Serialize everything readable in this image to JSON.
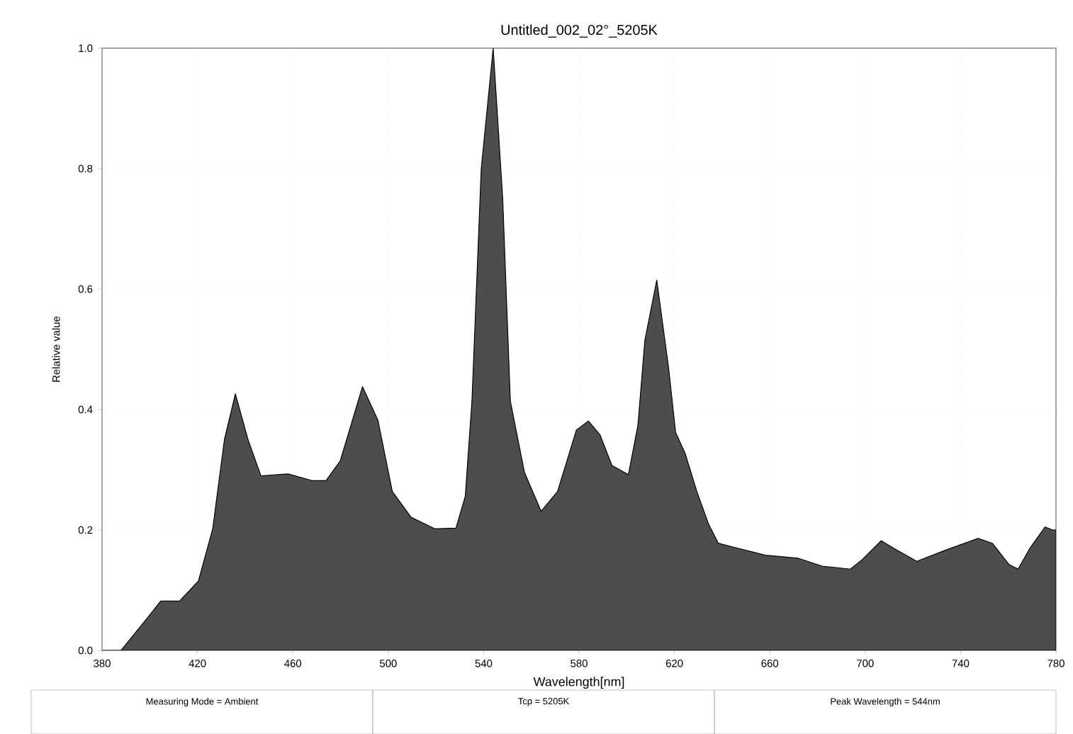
{
  "chart_data": {
    "type": "area",
    "title": "Untitled_002_02°_5205K",
    "xlabel": "Wavelength[nm]",
    "ylabel": "Relative value",
    "annotations": [
      "Measuring Mode = Ambient",
      "Tcp = 5205K",
      "Peak Wavelength = 544nm"
    ],
    "x": [
      380,
      388,
      398.6,
      404.6,
      412.5,
      420.4,
      426.4,
      431.3,
      435.9,
      441.2,
      446.6,
      458,
      468,
      473.9,
      479.9,
      489.2,
      495.7,
      501.7,
      509.6,
      519.5,
      528.4,
      532.3,
      535.1,
      539,
      544,
      548,
      551.2,
      557.1,
      564.1,
      571,
      578.9,
      583.9,
      588.8,
      593.8,
      600.7,
      604.7,
      607.6,
      612.6,
      617.6,
      620.5,
      624.5,
      629.4,
      634.4,
      638.4,
      646.3,
      658.2,
      672,
      681.9,
      693.8,
      698.8,
      706.7,
      713.6,
      721.6,
      733.4,
      747.3,
      753.3,
      760.2,
      764.1,
      769.1,
      775.4,
      778.6,
      780
    ],
    "series": [
      {
        "color": "#4d4d4d",
        "values": [
          0,
          0,
          0.052,
          0.082,
          0.082,
          0.115,
          0.202,
          0.35,
          0.426,
          0.35,
          0.29,
          0.293,
          0.282,
          0.282,
          0.315,
          0.438,
          0.382,
          0.264,
          0.221,
          0.202,
          0.203,
          0.256,
          0.414,
          0.8,
          1.0,
          0.75,
          0.414,
          0.296,
          0.231,
          0.264,
          0.366,
          0.381,
          0.358,
          0.307,
          0.292,
          0.374,
          0.515,
          0.615,
          0.468,
          0.362,
          0.327,
          0.264,
          0.209,
          0.178,
          0.17,
          0.158,
          0.153,
          0.14,
          0.135,
          0.151,
          0.182,
          0.166,
          0.148,
          0.166,
          0.186,
          0.178,
          0.143,
          0.135,
          0.17,
          0.205,
          0.2,
          0.2
        ]
      }
    ],
    "xlim": [
      380,
      780
    ],
    "ylim": [
      0,
      1
    ],
    "xticks": [
      380,
      420,
      460,
      500,
      540,
      580,
      620,
      660,
      700,
      740,
      780
    ],
    "yticks": [
      {
        "value": 0,
        "label": "0.0"
      },
      0.2,
      0.4,
      0.6,
      0.8,
      {
        "value": 1,
        "label": "1.0"
      }
    ],
    "grid": true
  }
}
